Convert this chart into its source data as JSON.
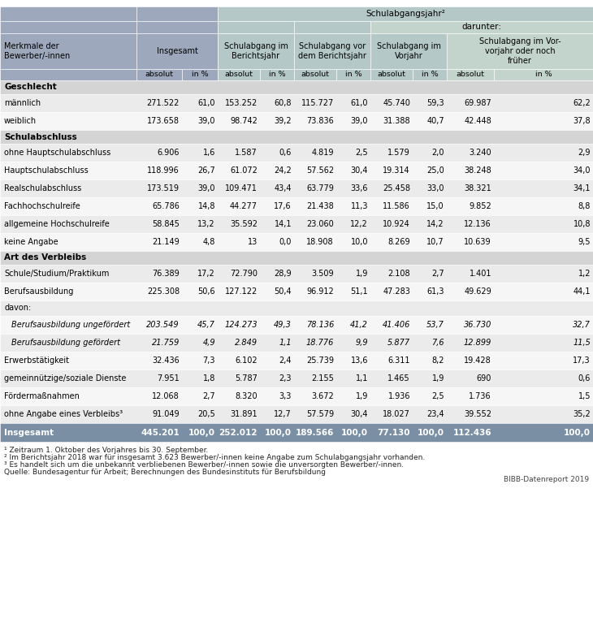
{
  "footnotes": [
    "¹ Zeitraum 1. Oktober des Vorjahres bis 30. September.",
    "² Im Berichtsjahr 2018 war für insgesamt 3.623 Bewerber/-innen keine Angabe zum Schulabgangsjahr vorhanden.",
    "³ Es handelt sich um die unbekannt verbliebenen Bewerber/-innen sowie die unversorgten Bewerber/-innen.",
    "Quelle: Bundesagentur für Arbeit; Berechnungen des Bundesinstituts für Berufsbildung",
    "BIBB-Datenreport 2019"
  ],
  "col0_bg": "#9da8bc",
  "ins_bg": "#9da8bc",
  "schulbg_im": "#b4c8c8",
  "schulbg_vor": "#b4c8c8",
  "dar_bg": "#c2d4cc",
  "vorjahr_bg": "#b4c8c8",
  "vorvorjahr_bg": "#c2d4cc",
  "section_bg": "#d4d4d4",
  "row_odd": "#ebebeb",
  "row_even": "#f6f6f6",
  "total_bg": "#7a8fa4",
  "rows": [
    {
      "label": "Geschlecht",
      "type": "section",
      "values": []
    },
    {
      "label": "männlich",
      "type": "data",
      "italic": false,
      "values": [
        "271.522",
        "61,0",
        "153.252",
        "60,8",
        "115.727",
        "61,0",
        "45.740",
        "59,3",
        "69.987",
        "62,2"
      ]
    },
    {
      "label": "weiblich",
      "type": "data",
      "italic": false,
      "values": [
        "173.658",
        "39,0",
        "98.742",
        "39,2",
        "73.836",
        "39,0",
        "31.388",
        "40,7",
        "42.448",
        "37,8"
      ]
    },
    {
      "label": "Schulabschluss",
      "type": "section",
      "values": []
    },
    {
      "label": "ohne Hauptschulabschluss",
      "type": "data",
      "italic": false,
      "values": [
        "6.906",
        "1,6",
        "1.587",
        "0,6",
        "4.819",
        "2,5",
        "1.579",
        "2,0",
        "3.240",
        "2,9"
      ]
    },
    {
      "label": "Hauptschulabschluss",
      "type": "data",
      "italic": false,
      "values": [
        "118.996",
        "26,7",
        "61.072",
        "24,2",
        "57.562",
        "30,4",
        "19.314",
        "25,0",
        "38.248",
        "34,0"
      ]
    },
    {
      "label": "Realschulabschluss",
      "type": "data",
      "italic": false,
      "values": [
        "173.519",
        "39,0",
        "109.471",
        "43,4",
        "63.779",
        "33,6",
        "25.458",
        "33,0",
        "38.321",
        "34,1"
      ]
    },
    {
      "label": "Fachhochschulreife",
      "type": "data",
      "italic": false,
      "values": [
        "65.786",
        "14,8",
        "44.277",
        "17,6",
        "21.438",
        "11,3",
        "11.586",
        "15,0",
        "9.852",
        "8,8"
      ]
    },
    {
      "label": "allgemeine Hochschulreife",
      "type": "data",
      "italic": false,
      "values": [
        "58.845",
        "13,2",
        "35.592",
        "14,1",
        "23.060",
        "12,2",
        "10.924",
        "14,2",
        "12.136",
        "10,8"
      ]
    },
    {
      "label": "keine Angabe",
      "type": "data",
      "italic": false,
      "values": [
        "21.149",
        "4,8",
        "13",
        "0,0",
        "18.908",
        "10,0",
        "8.269",
        "10,7",
        "10.639",
        "9,5"
      ]
    },
    {
      "label": "Art des Verbleibs",
      "type": "section",
      "values": []
    },
    {
      "label": "Schule/Studium/Praktikum",
      "type": "data",
      "italic": false,
      "values": [
        "76.389",
        "17,2",
        "72.790",
        "28,9",
        "3.509",
        "1,9",
        "2.108",
        "2,7",
        "1.401",
        "1,2"
      ]
    },
    {
      "label": "Berufsausbildung",
      "type": "data",
      "italic": false,
      "values": [
        "225.308",
        "50,6",
        "127.122",
        "50,4",
        "96.912",
        "51,1",
        "47.283",
        "61,3",
        "49.629",
        "44,1"
      ]
    },
    {
      "label": "davon:",
      "type": "subheader",
      "italic": false,
      "values": []
    },
    {
      "label": "Berufsausbildung ungefördert",
      "type": "data",
      "italic": true,
      "values": [
        "203.549",
        "45,7",
        "124.273",
        "49,3",
        "78.136",
        "41,2",
        "41.406",
        "53,7",
        "36.730",
        "32,7"
      ]
    },
    {
      "label": "Berufsausbildung gefördert",
      "type": "data",
      "italic": true,
      "values": [
        "21.759",
        "4,9",
        "2.849",
        "1,1",
        "18.776",
        "9,9",
        "5.877",
        "7,6",
        "12.899",
        "11,5"
      ]
    },
    {
      "label": "Erwerbstätigkeit",
      "type": "data",
      "italic": false,
      "values": [
        "32.436",
        "7,3",
        "6.102",
        "2,4",
        "25.739",
        "13,6",
        "6.311",
        "8,2",
        "19.428",
        "17,3"
      ]
    },
    {
      "label": "gemeinnützige/soziale Dienste",
      "type": "data",
      "italic": false,
      "values": [
        "7.951",
        "1,8",
        "5.787",
        "2,3",
        "2.155",
        "1,1",
        "1.465",
        "1,9",
        "690",
        "0,6"
      ]
    },
    {
      "label": "Fördermaßnahmen",
      "type": "data",
      "italic": false,
      "values": [
        "12.068",
        "2,7",
        "8.320",
        "3,3",
        "3.672",
        "1,9",
        "1.936",
        "2,5",
        "1.736",
        "1,5"
      ]
    },
    {
      "label": "ohne Angabe eines Verbleibs³",
      "type": "data",
      "italic": false,
      "values": [
        "91.049",
        "20,5",
        "31.891",
        "12,7",
        "57.579",
        "30,4",
        "18.027",
        "23,4",
        "39.552",
        "35,2"
      ]
    },
    {
      "label": "Insgesamt",
      "type": "total",
      "italic": false,
      "values": [
        "445.201",
        "100,0",
        "252.012",
        "100,0",
        "189.566",
        "100,0",
        "77.130",
        "100,0",
        "112.436",
        "100,0"
      ]
    }
  ]
}
